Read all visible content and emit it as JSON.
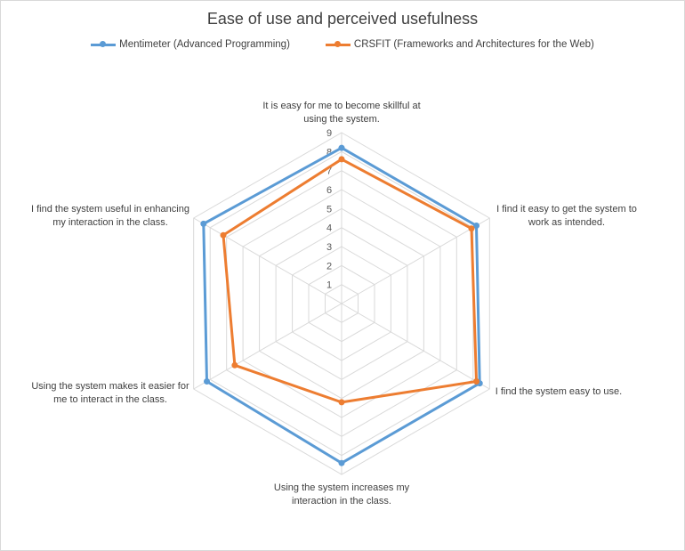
{
  "chart_data": {
    "type": "radar",
    "title": "Ease of use and perceived usefulness",
    "rmin": 0,
    "rmax": 9,
    "ticks": [
      "1",
      "2",
      "3",
      "4",
      "5",
      "6",
      "7",
      "8",
      "9"
    ],
    "legend_position": "top",
    "categories": [
      [
        "It is easy for me to become skillful at",
        "using the system."
      ],
      [
        "I find it easy to get the system to",
        "work as intended."
      ],
      [
        "I find the system easy to use."
      ],
      [
        "Using the system increases my",
        "interaction in the class."
      ],
      [
        "Using the system makes it easier for",
        "me to interact in the class."
      ],
      [
        "I find the system useful in enhancing",
        "my interaction in the class."
      ]
    ],
    "series": [
      {
        "name": "Mentimeter (Advanced Programming)",
        "color": "#5b9bd5",
        "values": [
          8.2,
          8.2,
          8.4,
          8.4,
          8.2,
          8.4
        ]
      },
      {
        "name": "CRSFIT (Frameworks and Architectures for the Web)",
        "color": "#ed7d31",
        "values": [
          7.6,
          7.9,
          8.2,
          5.2,
          6.5,
          7.2
        ]
      }
    ]
  }
}
